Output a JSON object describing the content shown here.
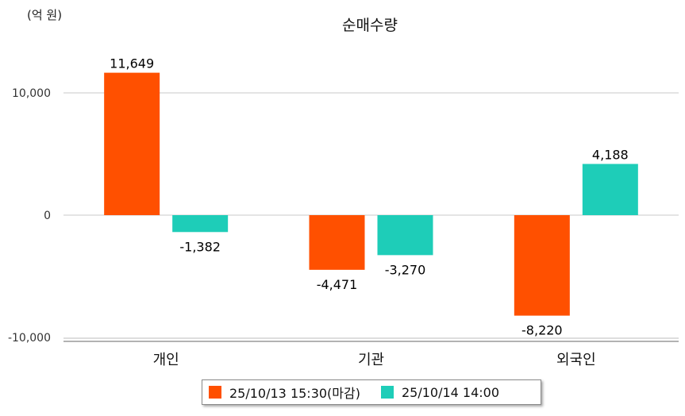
{
  "unit_label": "(억 원)",
  "chart_data": {
    "type": "bar",
    "title": "순매수량",
    "xlabel": "",
    "ylabel": "",
    "categories": [
      "개인",
      "기관",
      "외국인"
    ],
    "ylim": [
      -10000,
      12000
    ],
    "yticks": [
      -10000,
      0,
      10000
    ],
    "ytick_labels": [
      "-10,000",
      "0",
      "10,000"
    ],
    "grid": true,
    "legend_position": "bottom",
    "series": [
      {
        "name": "25/10/13 15:30(마감)",
        "color": "#ff5000",
        "values": [
          11649,
          -4471,
          -8220
        ],
        "labels": [
          "11,649",
          "-4,471",
          "-8,220"
        ]
      },
      {
        "name": "25/10/14 14:00",
        "color": "#1ecdb8",
        "values": [
          -1382,
          -3270,
          4188
        ],
        "labels": [
          "-1,382",
          "-3,270",
          "4,188"
        ]
      }
    ]
  }
}
